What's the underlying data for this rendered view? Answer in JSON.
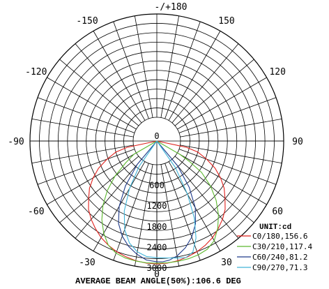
{
  "chart_data": {
    "type": "polar",
    "caption": "AVERAGE BEAM ANGLE(50%):106.6 DEG",
    "unit_label": "UNIT:cd",
    "angle_tick_labels": [
      {
        "angle": 180,
        "text": "-/+180"
      },
      {
        "angle": 150,
        "text": "150"
      },
      {
        "angle": -150,
        "text": "-150"
      },
      {
        "angle": 120,
        "text": "120"
      },
      {
        "angle": -120,
        "text": "-120"
      },
      {
        "angle": 90,
        "text": "90"
      },
      {
        "angle": -90,
        "text": "-90"
      },
      {
        "angle": 60,
        "text": "60"
      },
      {
        "angle": -60,
        "text": "-60"
      },
      {
        "angle": 30,
        "text": "30"
      },
      {
        "angle": -30,
        "text": "-30"
      },
      {
        "angle": 0,
        "text": "0"
      }
    ],
    "radial_labels": [
      {
        "value": 0,
        "text": "0"
      },
      {
        "value": 600,
        "text": "600"
      },
      {
        "value": 1200,
        "text": "1200"
      },
      {
        "value": 1800,
        "text": "1800"
      },
      {
        "value": 2400,
        "text": "2400"
      },
      {
        "value": 3000,
        "text": "3000"
      }
    ],
    "rmax": 3000,
    "series": [
      {
        "name": "C0/180,156.6",
        "color": "#e0201c",
        "points": [
          [
            -78,
            190
          ],
          [
            -75,
            540
          ],
          [
            -70,
            850
          ],
          [
            -65,
            1180
          ],
          [
            -60,
            1450
          ],
          [
            -55,
            1700
          ],
          [
            -50,
            1900
          ],
          [
            -45,
            2120
          ],
          [
            -40,
            2280
          ],
          [
            -35,
            2420
          ],
          [
            -30,
            2550
          ],
          [
            -25,
            2650
          ],
          [
            -20,
            2730
          ],
          [
            -15,
            2790
          ],
          [
            -10,
            2840
          ],
          [
            -5,
            2870
          ],
          [
            0,
            2880
          ],
          [
            5,
            2870
          ],
          [
            10,
            2840
          ],
          [
            15,
            2790
          ],
          [
            20,
            2730
          ],
          [
            25,
            2650
          ],
          [
            30,
            2550
          ],
          [
            35,
            2420
          ],
          [
            40,
            2280
          ],
          [
            45,
            2120
          ],
          [
            50,
            1900
          ],
          [
            55,
            1700
          ],
          [
            60,
            1450
          ],
          [
            65,
            1180
          ],
          [
            70,
            850
          ],
          [
            75,
            540
          ],
          [
            78,
            190
          ]
        ]
      },
      {
        "name": "C30/210,117.4",
        "color": "#5cb82e",
        "points": [
          [
            -60,
            80
          ],
          [
            -55,
            420
          ],
          [
            -50,
            900
          ],
          [
            -45,
            1350
          ],
          [
            -40,
            1750
          ],
          [
            -35,
            2100
          ],
          [
            -30,
            2400
          ],
          [
            -25,
            2650
          ],
          [
            -20,
            2780
          ],
          [
            -15,
            2830
          ],
          [
            -10,
            2850
          ],
          [
            -5,
            2860
          ],
          [
            0,
            2860
          ],
          [
            5,
            2860
          ],
          [
            10,
            2860
          ],
          [
            15,
            2850
          ],
          [
            20,
            2830
          ],
          [
            25,
            2780
          ],
          [
            30,
            2650
          ],
          [
            35,
            2400
          ],
          [
            40,
            2100
          ],
          [
            45,
            1750
          ],
          [
            50,
            1350
          ],
          [
            55,
            900
          ],
          [
            58,
            420
          ],
          [
            60,
            80
          ]
        ]
      },
      {
        "name": "C60/240,81.2",
        "color": "#1e3a8a",
        "points": [
          [
            -40,
            200
          ],
          [
            -35,
            900
          ],
          [
            -30,
            1500
          ],
          [
            -25,
            1950
          ],
          [
            -20,
            2250
          ],
          [
            -15,
            2480
          ],
          [
            -10,
            2650
          ],
          [
            -5,
            2780
          ],
          [
            0,
            2820
          ],
          [
            3,
            2820
          ],
          [
            6,
            2790
          ],
          [
            10,
            2700
          ],
          [
            15,
            2520
          ],
          [
            20,
            2280
          ],
          [
            25,
            1970
          ],
          [
            30,
            1550
          ],
          [
            35,
            950
          ],
          [
            40,
            250
          ]
        ]
      },
      {
        "name": "C90/270,71.3",
        "color": "#40b4d8",
        "points": [
          [
            -35,
            200
          ],
          [
            -30,
            900
          ],
          [
            -25,
            1550
          ],
          [
            -20,
            2050
          ],
          [
            -15,
            2380
          ],
          [
            -10,
            2580
          ],
          [
            -5,
            2680
          ],
          [
            0,
            2700
          ],
          [
            5,
            2720
          ],
          [
            10,
            2760
          ],
          [
            14,
            2800
          ],
          [
            18,
            2700
          ],
          [
            22,
            2350
          ],
          [
            26,
            1800
          ],
          [
            30,
            1100
          ],
          [
            35,
            250
          ]
        ]
      }
    ]
  }
}
